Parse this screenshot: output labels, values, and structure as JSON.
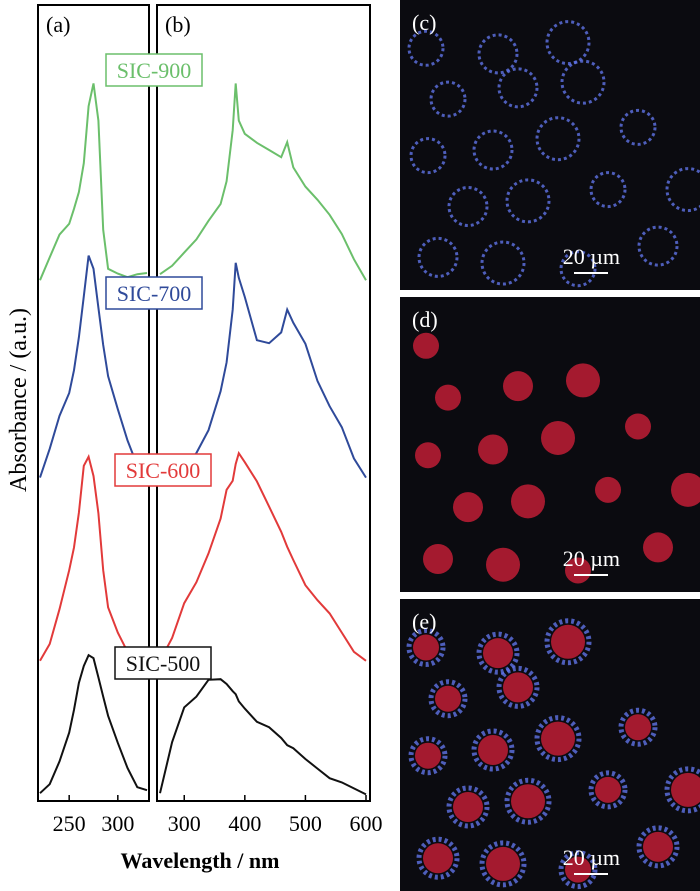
{
  "ylabel": "Absorbance / (a.u.)",
  "xlabel": "Wavelength / nm",
  "panels": {
    "a": "(a)",
    "b": "(b)",
    "c": "(c)",
    "d": "(d)",
    "e": "(e)"
  },
  "scale_bar": "20 µm",
  "colors": {
    "SIC-900": "#6bbf6b",
    "SIC-700": "#2f4a9a",
    "SIC-600": "#e23a3a",
    "SIC-500": "#111111",
    "cell_red": "#d8203a",
    "cell_blue": "#5f73e6",
    "micro_bg": "#0b0b10"
  },
  "chart_data": [
    {
      "type": "line",
      "panel": "(a)",
      "xlabel": "Wavelength / nm",
      "ylabel": "Absorbance / (a.u.)",
      "xlim": [
        220,
        330
      ],
      "xticks": [
        "250",
        "300"
      ],
      "stacked": true,
      "series": [
        {
          "name": "SIC-900",
          "x": [
            220,
            230,
            240,
            250,
            255,
            260,
            265,
            270,
            275,
            280,
            285,
            290,
            300,
            310,
            320,
            330
          ],
          "y": [
            0.05,
            0.25,
            0.45,
            0.55,
            0.65,
            0.8,
            1.05,
            1.5,
            1.7,
            1.4,
            0.5,
            0.15,
            0.12,
            0.1,
            0.1,
            0.12
          ]
        },
        {
          "name": "SIC-700",
          "x": [
            220,
            230,
            240,
            250,
            255,
            260,
            265,
            270,
            275,
            280,
            285,
            290,
            300,
            310,
            320,
            330
          ],
          "y": [
            0.05,
            0.3,
            0.55,
            0.75,
            0.95,
            1.2,
            1.55,
            1.9,
            1.8,
            1.45,
            1.15,
            0.9,
            0.6,
            0.35,
            0.15,
            0.05
          ]
        },
        {
          "name": "SIC-600",
          "x": [
            220,
            230,
            240,
            250,
            255,
            260,
            265,
            270,
            275,
            280,
            285,
            290,
            300,
            310,
            320,
            330
          ],
          "y": [
            0.05,
            0.2,
            0.5,
            0.8,
            1.0,
            1.3,
            1.7,
            1.75,
            1.6,
            1.3,
            0.8,
            0.5,
            0.3,
            0.15,
            0.05,
            0.02
          ]
        },
        {
          "name": "SIC-500",
          "x": [
            220,
            230,
            240,
            250,
            255,
            260,
            265,
            270,
            275,
            280,
            285,
            290,
            300,
            310,
            320,
            330
          ],
          "y": [
            0.05,
            0.1,
            0.3,
            0.55,
            0.75,
            0.95,
            1.1,
            1.2,
            1.15,
            1.0,
            0.85,
            0.7,
            0.45,
            0.25,
            0.1,
            0.05
          ]
        }
      ]
    },
    {
      "type": "line",
      "panel": "(b)",
      "xlabel": "Wavelength / nm",
      "xlim": [
        260,
        600
      ],
      "xticks": [
        "300",
        "400",
        "500",
        "600"
      ],
      "stacked": true,
      "series": [
        {
          "name": "SIC-900",
          "x": [
            260,
            280,
            300,
            320,
            340,
            360,
            370,
            380,
            385,
            390,
            400,
            420,
            440,
            460,
            470,
            480,
            500,
            520,
            540,
            560,
            580,
            600
          ],
          "y": [
            0.1,
            0.18,
            0.3,
            0.42,
            0.55,
            0.7,
            0.9,
            1.3,
            1.7,
            1.4,
            1.3,
            1.2,
            1.15,
            1.1,
            1.2,
            1.0,
            0.85,
            0.75,
            0.6,
            0.45,
            0.25,
            0.05
          ]
        },
        {
          "name": "SIC-700",
          "x": [
            260,
            280,
            300,
            320,
            340,
            360,
            370,
            380,
            385,
            390,
            400,
            420,
            440,
            460,
            470,
            480,
            500,
            520,
            540,
            560,
            580,
            600
          ],
          "y": [
            0.0,
            0.05,
            0.12,
            0.25,
            0.45,
            0.75,
            1.0,
            1.45,
            1.85,
            1.7,
            1.55,
            1.2,
            1.15,
            1.25,
            1.45,
            1.35,
            1.15,
            0.85,
            0.65,
            0.45,
            0.2,
            0.05
          ]
        },
        {
          "name": "SIC-600",
          "x": [
            260,
            280,
            300,
            320,
            340,
            360,
            370,
            380,
            385,
            390,
            400,
            420,
            440,
            460,
            470,
            480,
            500,
            520,
            540,
            560,
            580,
            600
          ],
          "y": [
            0.05,
            0.25,
            0.55,
            0.7,
            0.95,
            1.25,
            1.5,
            1.55,
            1.7,
            1.8,
            1.7,
            1.55,
            1.35,
            1.15,
            1.0,
            0.9,
            0.7,
            0.55,
            0.45,
            0.3,
            0.15,
            0.05
          ]
        },
        {
          "name": "SIC-500",
          "x": [
            260,
            280,
            300,
            320,
            340,
            360,
            370,
            380,
            385,
            390,
            400,
            420,
            440,
            460,
            470,
            480,
            500,
            520,
            540,
            560,
            580,
            600
          ],
          "y": [
            0.05,
            0.45,
            0.75,
            0.85,
            1.0,
            0.98,
            0.95,
            0.9,
            0.85,
            0.8,
            0.75,
            0.65,
            0.58,
            0.5,
            0.45,
            0.4,
            0.32,
            0.25,
            0.18,
            0.12,
            0.08,
            0.04
          ]
        }
      ]
    }
  ],
  "micrographs": [
    {
      "panel": "(c)",
      "channel": "blue",
      "cell_count": 18
    },
    {
      "panel": "(d)",
      "channel": "red",
      "cell_count": 16
    },
    {
      "panel": "(e)",
      "channel": "merged",
      "cell_count": 17
    }
  ]
}
